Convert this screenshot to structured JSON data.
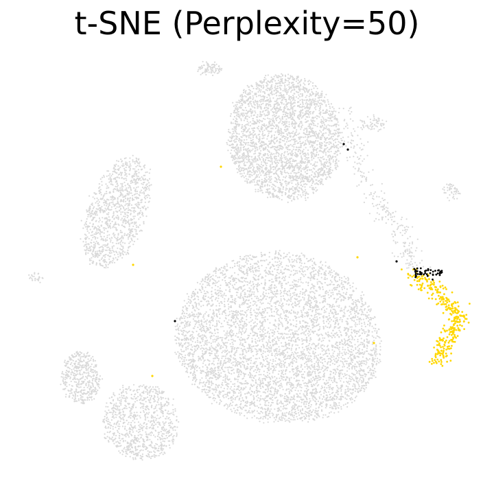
{
  "title": "t-SNE (Perplexity=50)",
  "chart_data": {
    "type": "scatter",
    "title": "t-SNE (Perplexity=50)",
    "xlabel": "",
    "ylabel": "",
    "axes_visible": false,
    "grid": false,
    "legend": "none",
    "colors": {
      "background_points": "#d9d9d9",
      "highlight_yellow": "#ffd700",
      "highlight_black": "#000000"
    },
    "clusters": [
      {
        "id": "top-left-blob",
        "color": "background_points",
        "approx_center": [
          305,
          100
        ],
        "approx_count": 80
      },
      {
        "id": "top-large",
        "color": "background_points",
        "approx_center": [
          415,
          200
        ],
        "approx_count": 3000
      },
      {
        "id": "top-right-small",
        "color": "background_points",
        "approx_center": [
          545,
          180
        ],
        "approx_count": 60
      },
      {
        "id": "right-chain",
        "color": "background_points",
        "approx_center": [
          560,
          320
        ],
        "approx_count": 260
      },
      {
        "id": "far-right-small",
        "color": "background_points",
        "approx_center": [
          658,
          280
        ],
        "approx_count": 50
      },
      {
        "id": "left-elongated",
        "color": "background_points",
        "approx_center": [
          170,
          310
        ],
        "approx_count": 1100
      },
      {
        "id": "far-left-small",
        "color": "background_points",
        "approx_center": [
          52,
          404
        ],
        "approx_count": 25
      },
      {
        "id": "center-large",
        "color": "background_points",
        "approx_center": [
          405,
          500
        ],
        "approx_count": 5200
      },
      {
        "id": "bottom-left-a",
        "color": "background_points",
        "approx_center": [
          118,
          550
        ],
        "approx_count": 450
      },
      {
        "id": "bottom-left-b",
        "color": "background_points",
        "approx_center": [
          205,
          615
        ],
        "approx_count": 900
      },
      {
        "id": "highlight-yellow",
        "color": "highlight_yellow",
        "approx_center": [
          650,
          455
        ],
        "approx_count": 320
      },
      {
        "id": "highlight-black",
        "color": "highlight_black",
        "approx_center": [
          622,
          396
        ],
        "approx_count": 45
      }
    ]
  }
}
